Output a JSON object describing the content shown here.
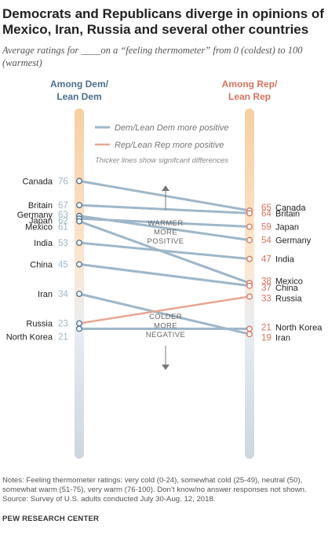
{
  "title": "Democrats and Republicans diverge in opinions of Mexico, Iran, Russia and several other countries",
  "subtitle": "Average ratings for ____on a “feeling thermometer” from 0 (coldest) to 100 (warmest)",
  "notes": [
    "Notes: Feeling thermometer ratings: very cold (0-24), somewhat cold (25-49), neutral (50),",
    "somewhat warm (51-75), very warm (76-100). Don’t know/no answer responses not shown.",
    "Source: Survey of U.S. adults conducted July 30-Aug. 12, 2018."
  ],
  "source_label": "PEW RESEARCH CENTER",
  "colors": {
    "dem": "#4b6f8f",
    "dem_line": "#9fb7c9",
    "rep": "#d9735e",
    "rep_line": "#e9a593",
    "bar_warm": "#f6cfa2",
    "bar_cold": "#cfd8e1"
  },
  "chart_data": {
    "type": "slope",
    "left_label": "Among Dem/ Lean Dem",
    "right_label": "Among Rep/ Lean Rep",
    "legend": [
      "Dem/Lean Dem more positive",
      "Rep/Lean Rep more positive",
      "Thicker lines show signifcant differences"
    ],
    "annotations": {
      "warmer": [
        "WARMER",
        "MORE",
        "POSITIVE"
      ],
      "colder": [
        "COLDER",
        "MORE",
        "NEGATIVE"
      ]
    },
    "ylim": [
      0,
      100
    ],
    "countries": [
      {
        "name": "Canada",
        "dem": 76,
        "rep": 65
      },
      {
        "name": "Britain",
        "dem": 67,
        "rep": 64
      },
      {
        "name": "Germany",
        "dem": 63,
        "rep": 54
      },
      {
        "name": "Japan",
        "dem": 62,
        "rep": 59
      },
      {
        "name": "Mexico",
        "dem": 61,
        "rep": 38
      },
      {
        "name": "India",
        "dem": 53,
        "rep": 47
      },
      {
        "name": "China",
        "dem": 45,
        "rep": 37
      },
      {
        "name": "Iran",
        "dem": 34,
        "rep": 19
      },
      {
        "name": "Russia",
        "dem": 23,
        "rep": 33
      },
      {
        "name": "North Korea",
        "dem": 21,
        "rep": 21
      }
    ]
  }
}
